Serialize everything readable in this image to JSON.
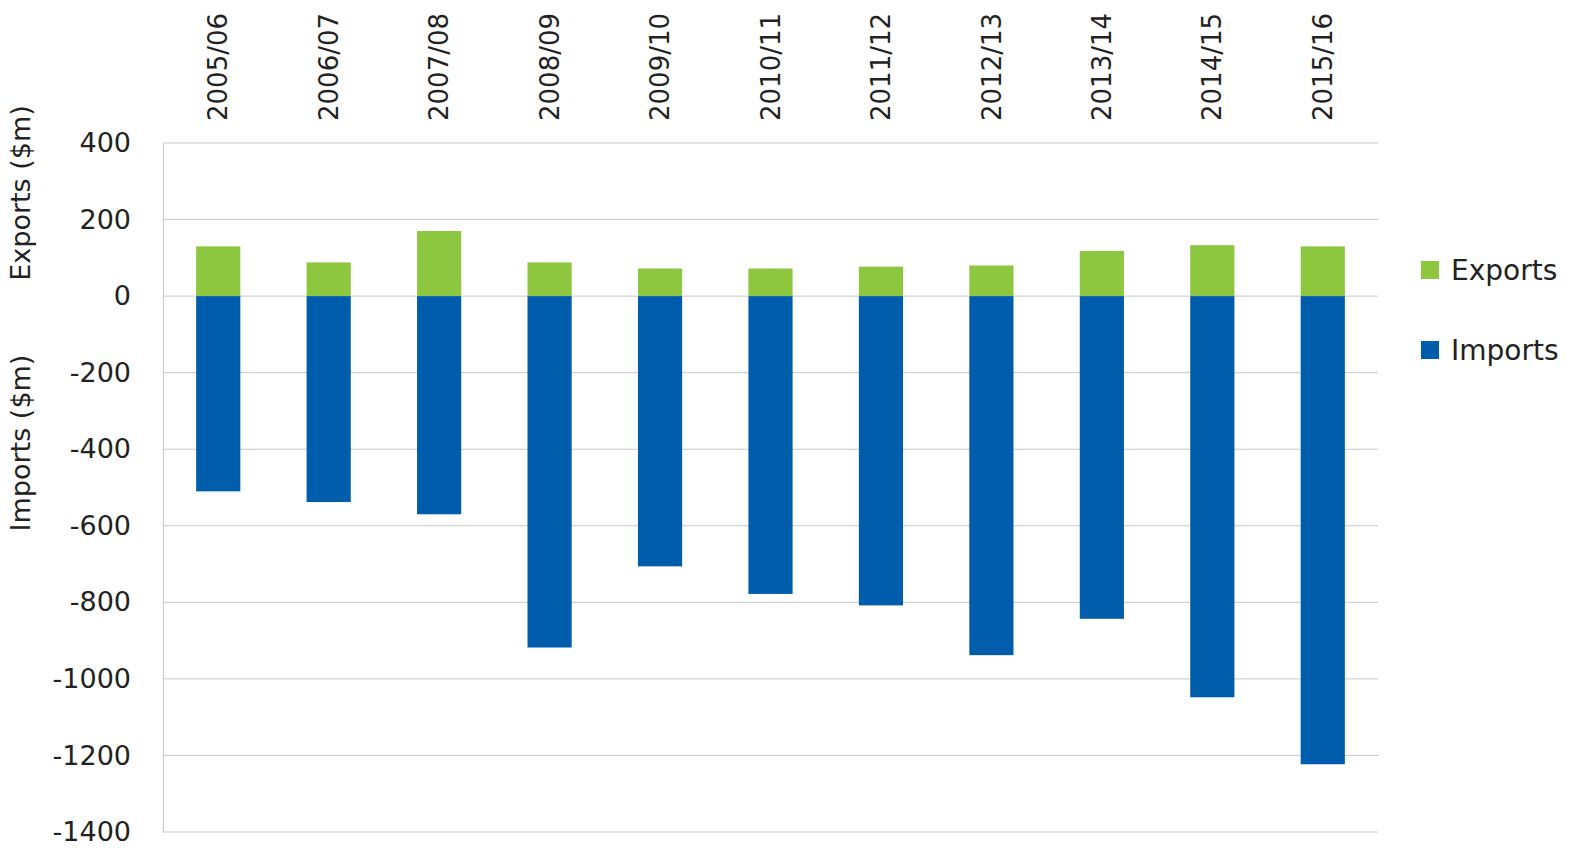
{
  "chart_data": {
    "type": "bar",
    "stacked": true,
    "grid": true,
    "legend": "right",
    "y_labels": [
      "Exports ($m)",
      "Imports ($m)"
    ],
    "categories": [
      "2005/06",
      "2006/07",
      "2007/08",
      "2008/09",
      "2009/10",
      "2010/11",
      "2011/12",
      "2012/13",
      "2013/14",
      "2014/15",
      "2015/16"
    ],
    "series": [
      {
        "name": "Exports",
        "color": "#8dc63f",
        "values": [
          130,
          88,
          170,
          88,
          72,
          72,
          77,
          80,
          118,
          133,
          130
        ]
      },
      {
        "name": "Imports",
        "color": "#005dab",
        "values": [
          -510,
          -538,
          -570,
          -918,
          -706,
          -778,
          -808,
          -938,
          -843,
          -1048,
          -1223
        ]
      }
    ],
    "ylim": [
      -1400,
      400
    ],
    "yticks": [
      -1400,
      -1200,
      -1000,
      -800,
      -600,
      -400,
      -200,
      0,
      200,
      400
    ]
  }
}
